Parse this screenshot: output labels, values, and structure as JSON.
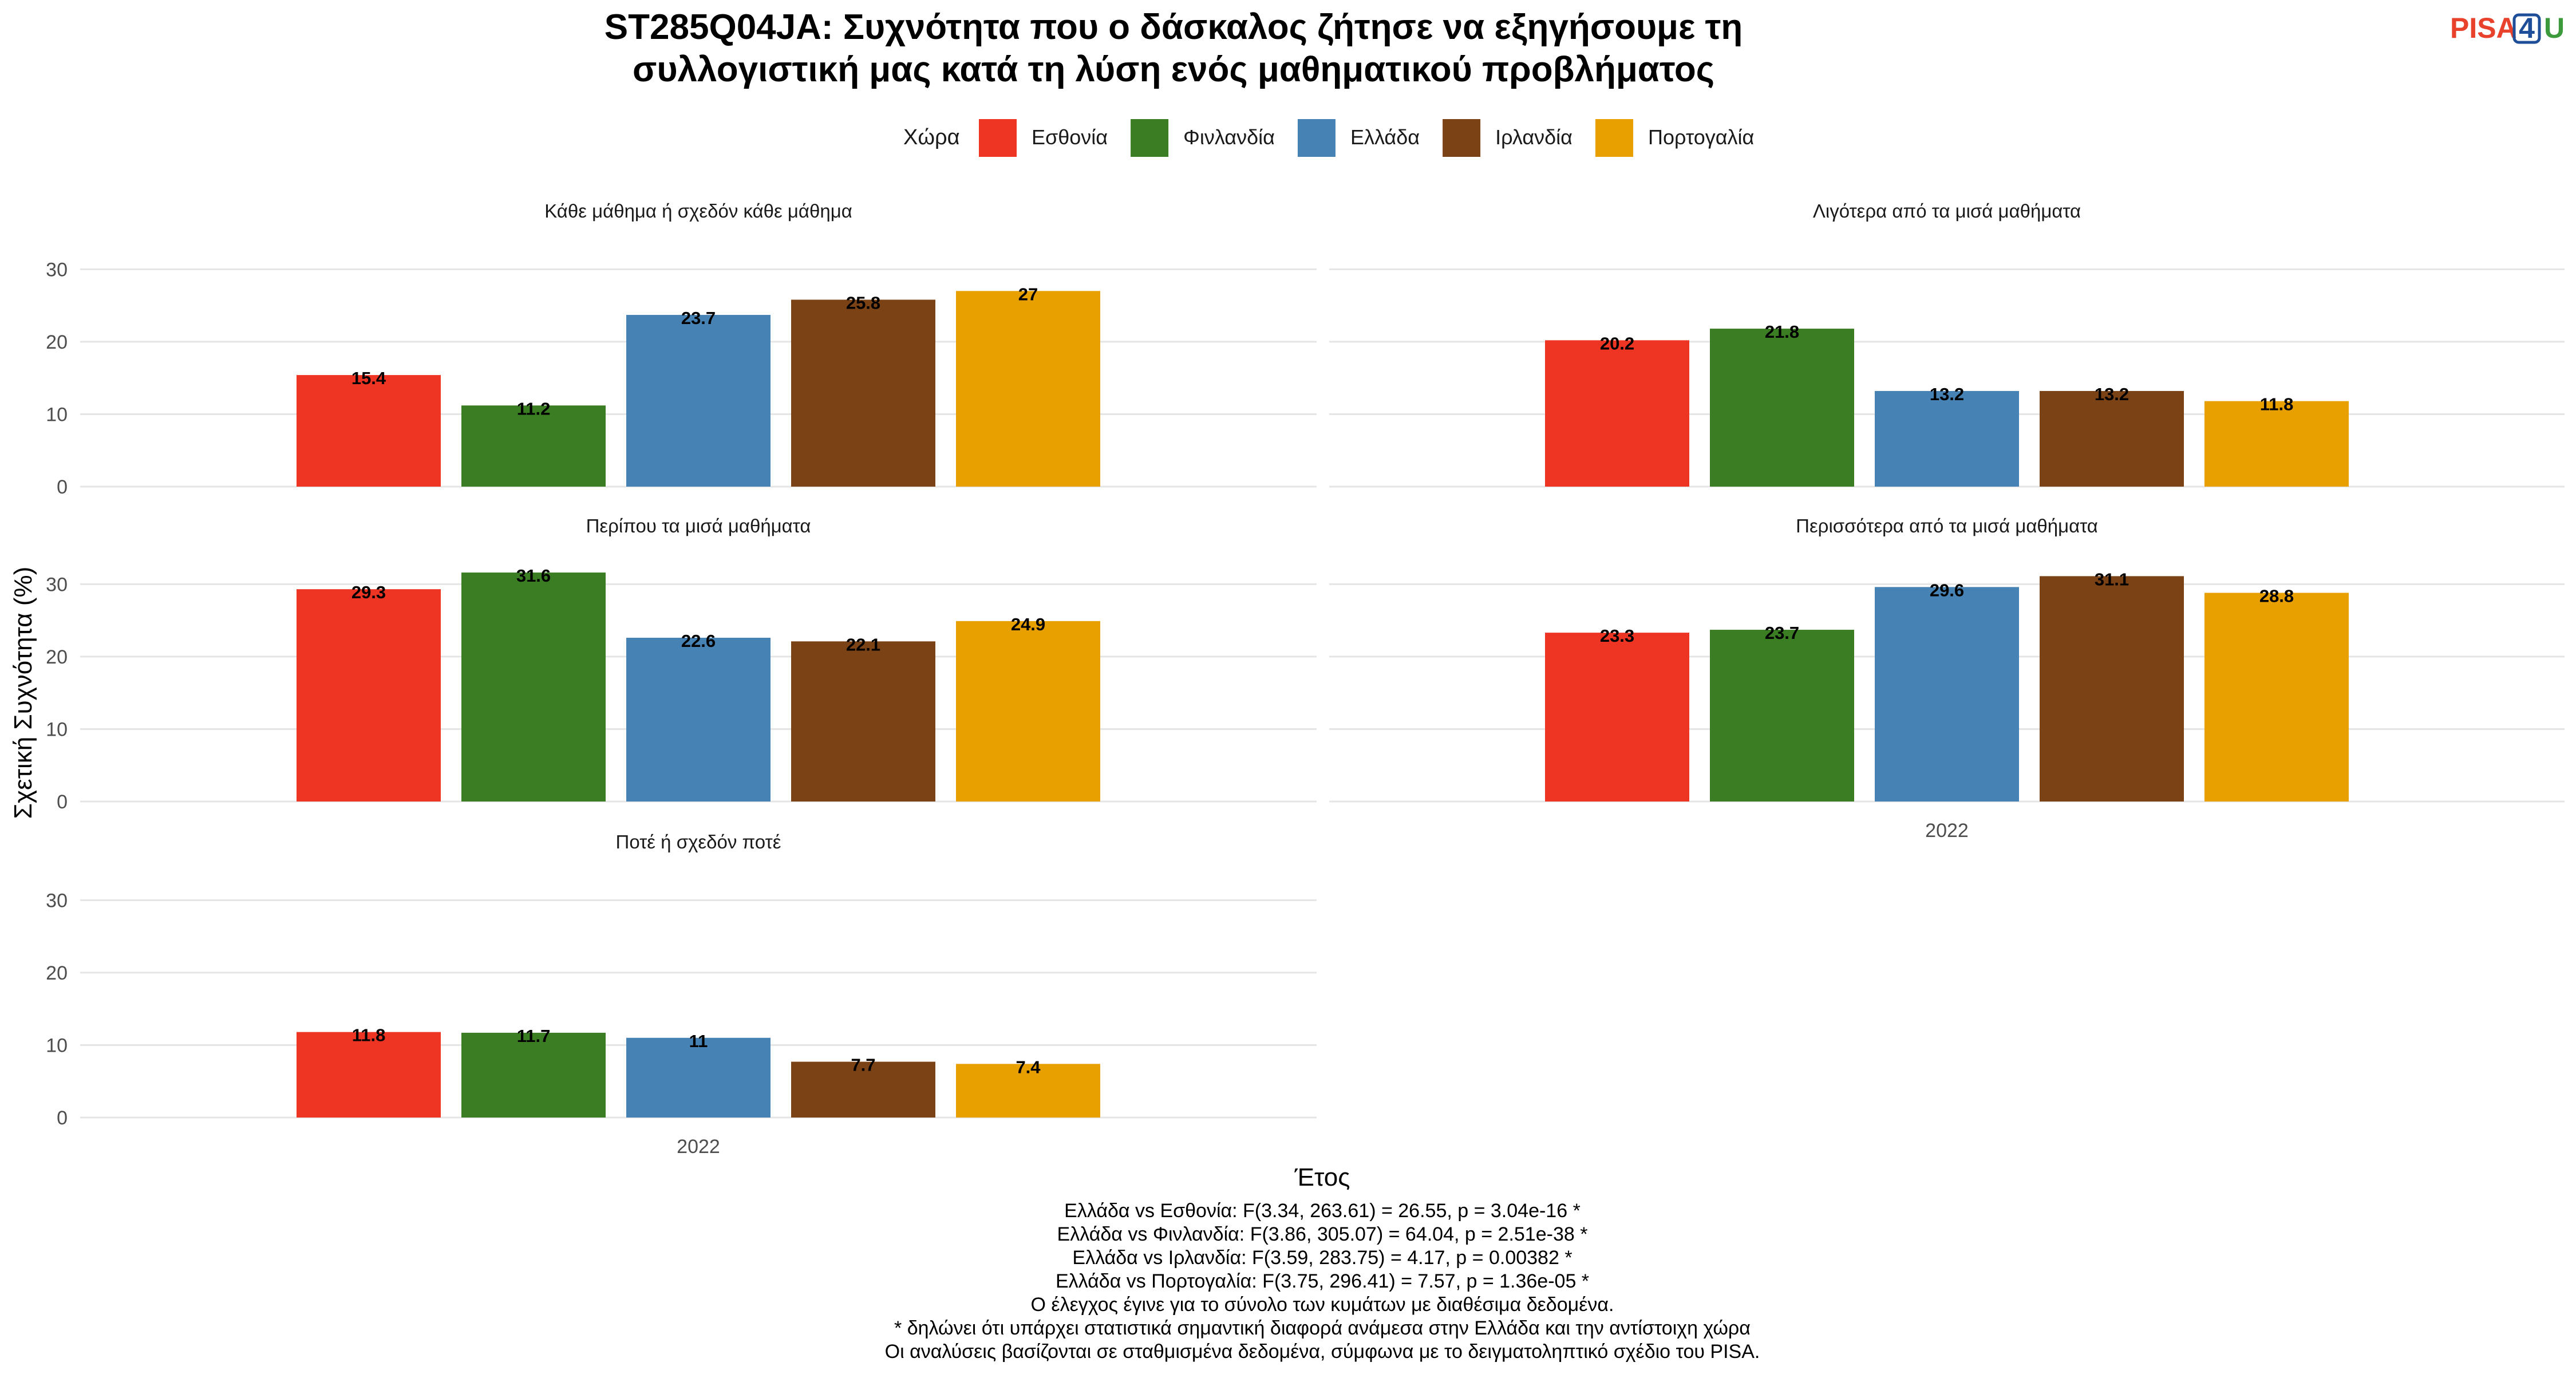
{
  "title_lines": [
    "ST285Q04JA: Συχνότητα που ο δάσκαλος ζήτησε να εξηγήσουμε τη",
    "συλλογιστική μας κατά τη λύση ενός μαθηματικού προβλήματος"
  ],
  "logo": {
    "text_a": "PISA",
    "text_b": "4",
    "text_c": "U",
    "color_a": "#e8412c",
    "color_b": "#1f4e99",
    "color_c": "#3c9a3c"
  },
  "legend": {
    "title": "Χώρα",
    "placement": "top-center"
  },
  "x_axis_title": "Έτος",
  "y_axis_title": "Σχετική Συχνότητα (%)",
  "notes": [
    "Ελλάδα vs Εσθονία: F(3.34, 263.61) = 26.55, p = 3.04e-16 *",
    "Ελλάδα vs Φινλανδία: F(3.86, 305.07) = 64.04, p = 2.51e-38 *",
    "Ελλάδα vs Ιρλανδία: F(3.59, 283.75) = 4.17, p = 0.00382 *",
    "Ελλάδα vs Πορτογαλία: F(3.75, 296.41) = 7.57, p = 1.36e-05 *",
    "Ο έλεγχος έγινε για το σύνολο των κυμάτων με διαθέσιμα δεδομένα.",
    "* δηλώνει ότι υπάρχει στατιστικά σημαντική διαφορά ανάμεσα στην Ελλάδα και την αντίστοιχη χώρα",
    "Οι αναλύσεις βασίζονται σε σταθμισμένα δεδομένα, σύμφωνα με το δειγματοληπτικό σχέδιο του PISA."
  ],
  "chart_data": {
    "type": "bar",
    "x": [
      "2022"
    ],
    "ylim": [
      0,
      32
    ],
    "yticks": [
      0,
      10,
      20,
      30
    ],
    "grid": true,
    "series_names": [
      "Εσθονία",
      "Φινλανδία",
      "Ελλάδα",
      "Ιρλανδία",
      "Πορτογαλία"
    ],
    "series_colors": [
      "#ee3524",
      "#3a7d22",
      "#4682b4",
      "#7b4216",
      "#e8a000"
    ],
    "panels": [
      {
        "label": "Κάθε μάθημα ή σχεδόν κάθε μάθημα",
        "values": [
          15.4,
          11.2,
          23.7,
          25.8,
          27
        ],
        "value_labels": [
          "15.4",
          "11.2",
          "23.7",
          "25.8",
          "27"
        ]
      },
      {
        "label": "Λιγότερα από τα μισά μαθήματα",
        "values": [
          20.2,
          21.8,
          13.2,
          13.2,
          11.8
        ],
        "value_labels": [
          "20.2",
          "21.8",
          "13.2",
          "13.2",
          "11.8"
        ]
      },
      {
        "label": "Περίπου τα μισά μαθήματα",
        "values": [
          29.3,
          31.6,
          22.6,
          22.1,
          24.9
        ],
        "value_labels": [
          "29.3",
          "31.6",
          "22.6",
          "22.1",
          "24.9"
        ]
      },
      {
        "label": "Περισσότερα από τα μισά μαθήματα",
        "values": [
          23.3,
          23.7,
          29.6,
          31.1,
          28.8
        ],
        "value_labels": [
          "23.3",
          "23.7",
          "29.6",
          "31.1",
          "28.8"
        ]
      },
      {
        "label": "Ποτέ ή σχεδόν ποτέ",
        "values": [
          11.8,
          11.7,
          11,
          7.7,
          7.4
        ],
        "value_labels": [
          "11.8",
          "11.7",
          "11",
          "7.7",
          "7.4"
        ]
      }
    ]
  }
}
